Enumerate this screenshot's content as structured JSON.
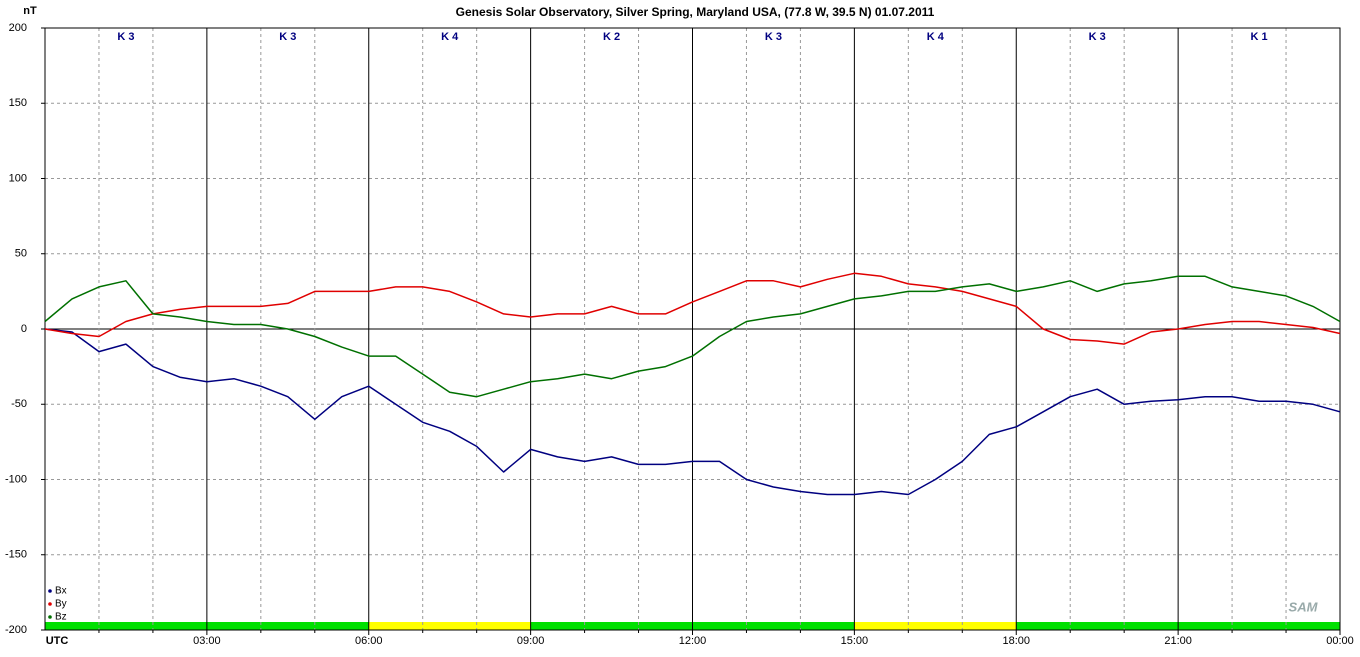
{
  "chart_data": {
    "type": "line",
    "title": "Genesis Solar Observatory, Silver Spring, Maryland USA, (77.8 W, 39.5 N)  01.07.2011",
    "y_label": "nT",
    "x_label": "UTC",
    "logo": "SAM",
    "xlim": [
      0,
      24
    ],
    "ylim": [
      -200,
      200
    ],
    "yticks": [
      -200,
      -150,
      -100,
      -50,
      0,
      50,
      100,
      150,
      200
    ],
    "xticks": [
      {
        "value": 3,
        "label": "03:00"
      },
      {
        "value": 6,
        "label": "06:00"
      },
      {
        "value": 9,
        "label": "09:00"
      },
      {
        "value": 12,
        "label": "12:00"
      },
      {
        "value": 15,
        "label": "15:00"
      },
      {
        "value": 18,
        "label": "18:00"
      },
      {
        "value": 21,
        "label": "21:00"
      },
      {
        "value": 24,
        "label": "00:00"
      }
    ],
    "xminor_ticks": [
      1,
      2,
      4,
      5,
      7,
      8,
      10,
      11,
      13,
      14,
      16,
      17,
      19,
      20,
      22,
      23
    ],
    "grid": true,
    "zero_line": true,
    "legend": "lower left",
    "k_index": {
      "labels": [
        "K 3",
        "K 3",
        "K 4",
        "K 2",
        "K 3",
        "K 4",
        "K 3",
        "K 1"
      ],
      "colors": [
        "#00e000",
        "#00e000",
        "#ffff00",
        "#00e000",
        "#00e000",
        "#ffff00",
        "#00e000",
        "#00e000"
      ]
    },
    "x": [
      0,
      0.5,
      1,
      1.5,
      2,
      2.5,
      3,
      3.5,
      4,
      4.5,
      5,
      5.5,
      6,
      6.5,
      7,
      7.5,
      8,
      8.5,
      9,
      9.5,
      10,
      10.5,
      11,
      11.5,
      12,
      12.5,
      13,
      13.5,
      14,
      14.5,
      15,
      15.5,
      16,
      16.5,
      17,
      17.5,
      18,
      18.5,
      19,
      19.5,
      20,
      20.5,
      21,
      21.5,
      22,
      22.5,
      23,
      23.5,
      24
    ],
    "series": [
      {
        "name": "Bx",
        "color": "#000080",
        "values": [
          0,
          -2,
          -15,
          -10,
          -25,
          -32,
          -35,
          -33,
          -38,
          -45,
          -60,
          -45,
          -38,
          -50,
          -62,
          -68,
          -78,
          -95,
          -80,
          -85,
          -88,
          -85,
          -90,
          -90,
          -88,
          -88,
          -100,
          -105,
          -108,
          -110,
          -110,
          -108,
          -110,
          -100,
          -88,
          -70,
          -65,
          -55,
          -45,
          -40,
          -50,
          -48,
          -47,
          -45,
          -45,
          -48,
          -48,
          -50,
          -55
        ]
      },
      {
        "name": "By",
        "color": "#e00000",
        "values": [
          0,
          -3,
          -5,
          5,
          10,
          13,
          15,
          15,
          15,
          17,
          25,
          25,
          25,
          28,
          28,
          25,
          18,
          10,
          8,
          10,
          10,
          15,
          10,
          10,
          18,
          25,
          32,
          32,
          28,
          33,
          37,
          35,
          30,
          28,
          25,
          20,
          15,
          0,
          -7,
          -8,
          -10,
          -2,
          0,
          3,
          5,
          5,
          3,
          1,
          -3
        ]
      },
      {
        "name": "Bz",
        "color": "#007000",
        "values": [
          5,
          20,
          28,
          32,
          10,
          8,
          5,
          3,
          3,
          0,
          -5,
          -12,
          -18,
          -18,
          -30,
          -42,
          -45,
          -40,
          -35,
          -33,
          -30,
          -33,
          -28,
          -25,
          -18,
          -5,
          5,
          8,
          10,
          15,
          20,
          22,
          25,
          25,
          28,
          30,
          25,
          28,
          32,
          25,
          30,
          32,
          35,
          35,
          28,
          25,
          22,
          15,
          5
        ]
      }
    ]
  }
}
